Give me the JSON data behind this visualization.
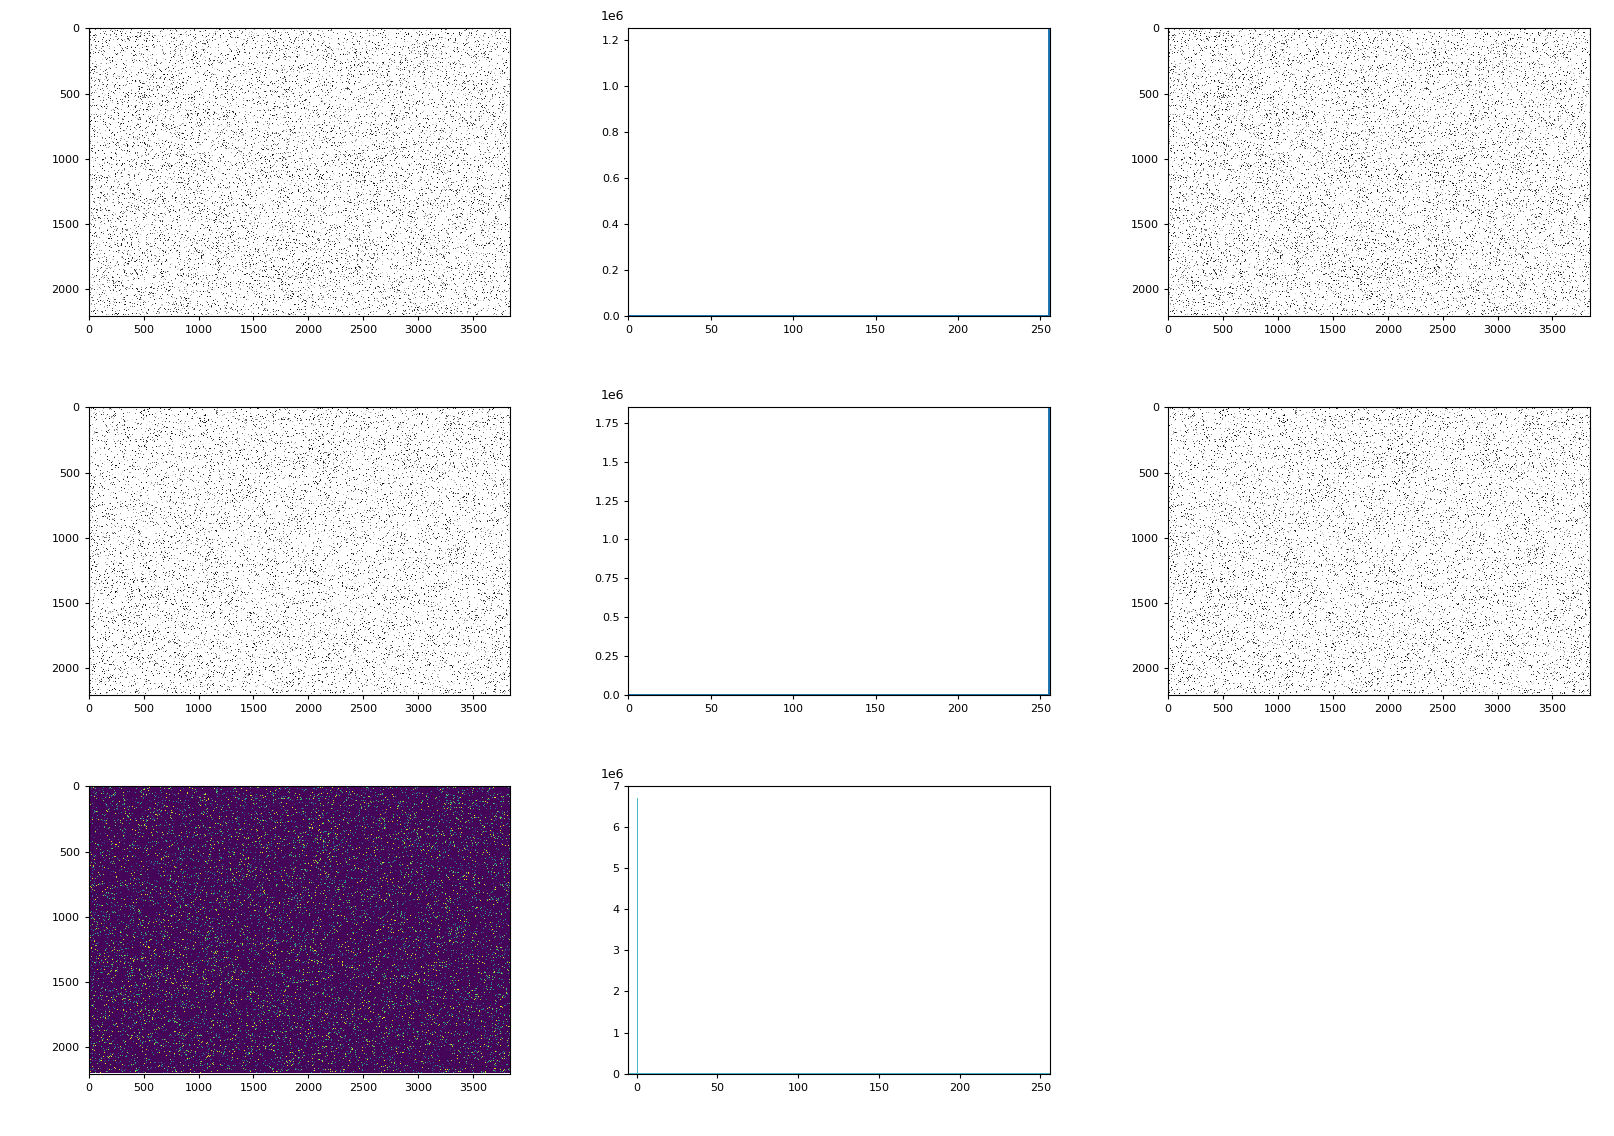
{
  "image_shape_rows": 2200,
  "image_shape_cols": 3840,
  "image_xticks": [
    0,
    500,
    1000,
    1500,
    2000,
    2500,
    3000,
    3500
  ],
  "image_yticks": [
    0,
    500,
    1000,
    1500,
    2000
  ],
  "hist_xticks": [
    0,
    50,
    100,
    150,
    200,
    250
  ],
  "hist1_ylim": 1250000.0,
  "hist1_yticks": [
    0.0,
    0.2,
    0.4,
    0.6,
    0.8,
    1.0,
    1.2
  ],
  "hist2_ylim": 1850000.0,
  "hist2_yticks": [
    0.0,
    0.25,
    0.5,
    0.75,
    1.0,
    1.25,
    1.5,
    1.75
  ],
  "hist3_ylim": 7000000.0,
  "hist3_yticks": [
    0,
    1,
    2,
    3,
    4,
    5,
    6,
    7
  ],
  "hist_color_1": "#1f77b4",
  "hist_color_2": "#1f77b4",
  "hist_color_3": "#4ab8c8",
  "figsize": [
    16.14,
    11.36
  ],
  "dpi": 100
}
